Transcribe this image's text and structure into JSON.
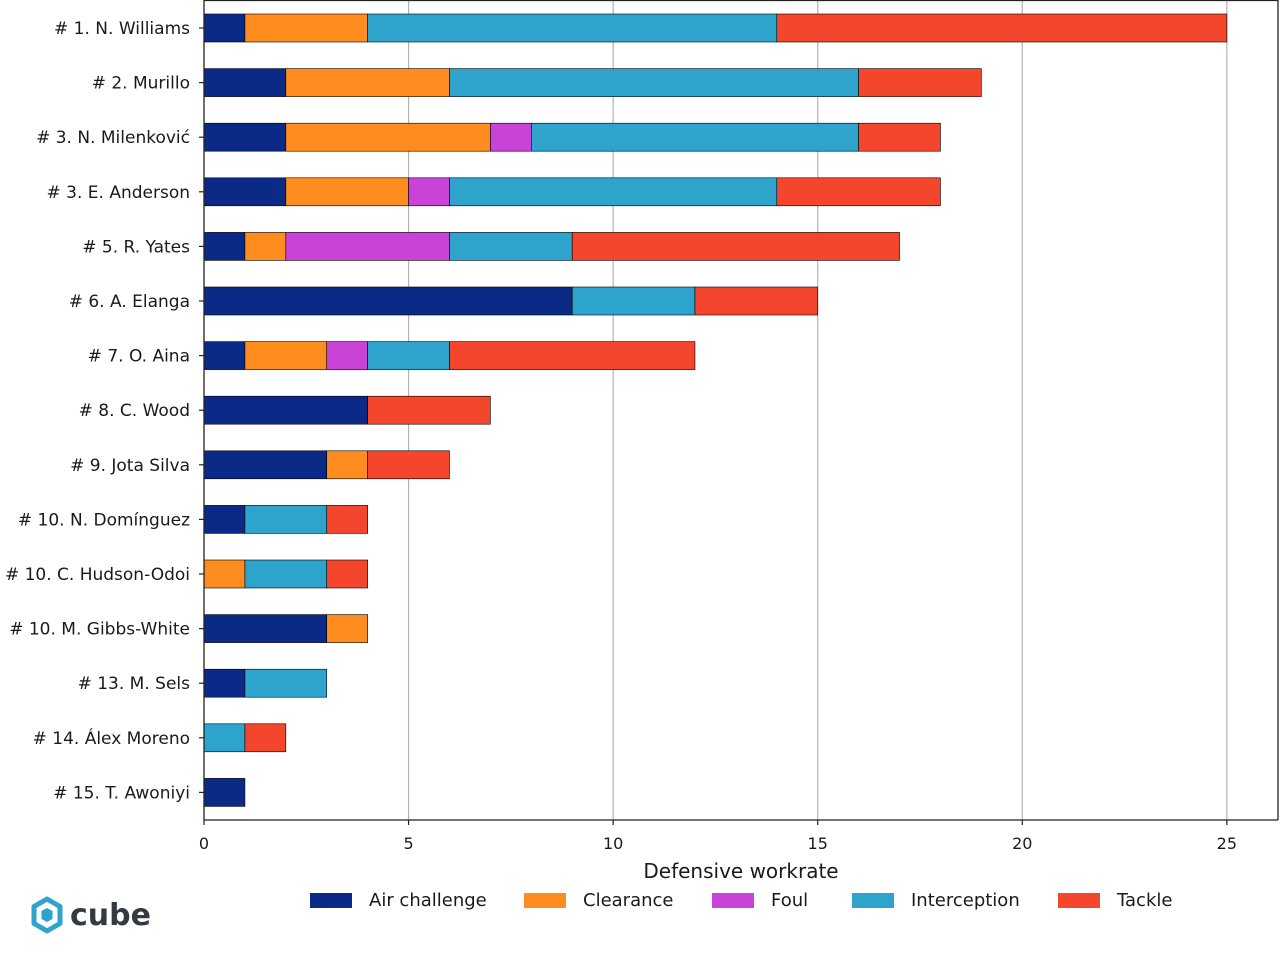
{
  "chart_data": {
    "type": "bar",
    "orientation": "horizontal",
    "stacked": true,
    "xlabel": "Defensive workrate",
    "xlim": [
      0,
      26.25
    ],
    "xticks": [
      0,
      5,
      10,
      15,
      20,
      25
    ],
    "grid": "vertical",
    "legend_position": "bottom",
    "categories": [
      "# 1.  N. Williams",
      "# 2.  Murillo",
      "# 3.  N. Milenković",
      "# 3.  E. Anderson",
      "# 5.  R. Yates",
      "# 6.  A. Elanga",
      "# 7.  O. Aina",
      "# 8.  C. Wood",
      "# 9.  Jota Silva",
      "# 10.  N. Domínguez",
      "# 10.  C. Hudson-Odoi",
      "# 10.  M. Gibbs-White",
      "# 13.  M. Sels",
      "# 14.  Álex Moreno",
      "# 15.  T. Awoniyi"
    ],
    "series": [
      {
        "name": "Air challenge",
        "color": "#0b2a87",
        "values": [
          1,
          2,
          2,
          2,
          1,
          9,
          1,
          4,
          3,
          1,
          0,
          3,
          1,
          0,
          1
        ]
      },
      {
        "name": "Clearance",
        "color": "#ff8c1f",
        "values": [
          3,
          4,
          5,
          3,
          1,
          0,
          2,
          0,
          1,
          0,
          1,
          1,
          0,
          0,
          0
        ]
      },
      {
        "name": "Foul",
        "color": "#c843d6",
        "values": [
          0,
          0,
          1,
          1,
          4,
          0,
          1,
          0,
          0,
          0,
          0,
          0,
          0,
          0,
          0
        ]
      },
      {
        "name": "Interception",
        "color": "#2ea4cc",
        "values": [
          10,
          10,
          8,
          8,
          3,
          3,
          2,
          0,
          0,
          2,
          2,
          0,
          2,
          1,
          0
        ]
      },
      {
        "name": "Tackle",
        "color": "#f4462c",
        "values": [
          11,
          3,
          2,
          4,
          8,
          3,
          6,
          3,
          2,
          1,
          1,
          0,
          0,
          1,
          0
        ]
      }
    ]
  },
  "brand": {
    "name": "cube",
    "logo_icon": "cube-hexagon-icon",
    "logo_color": "#2ea4cc"
  }
}
